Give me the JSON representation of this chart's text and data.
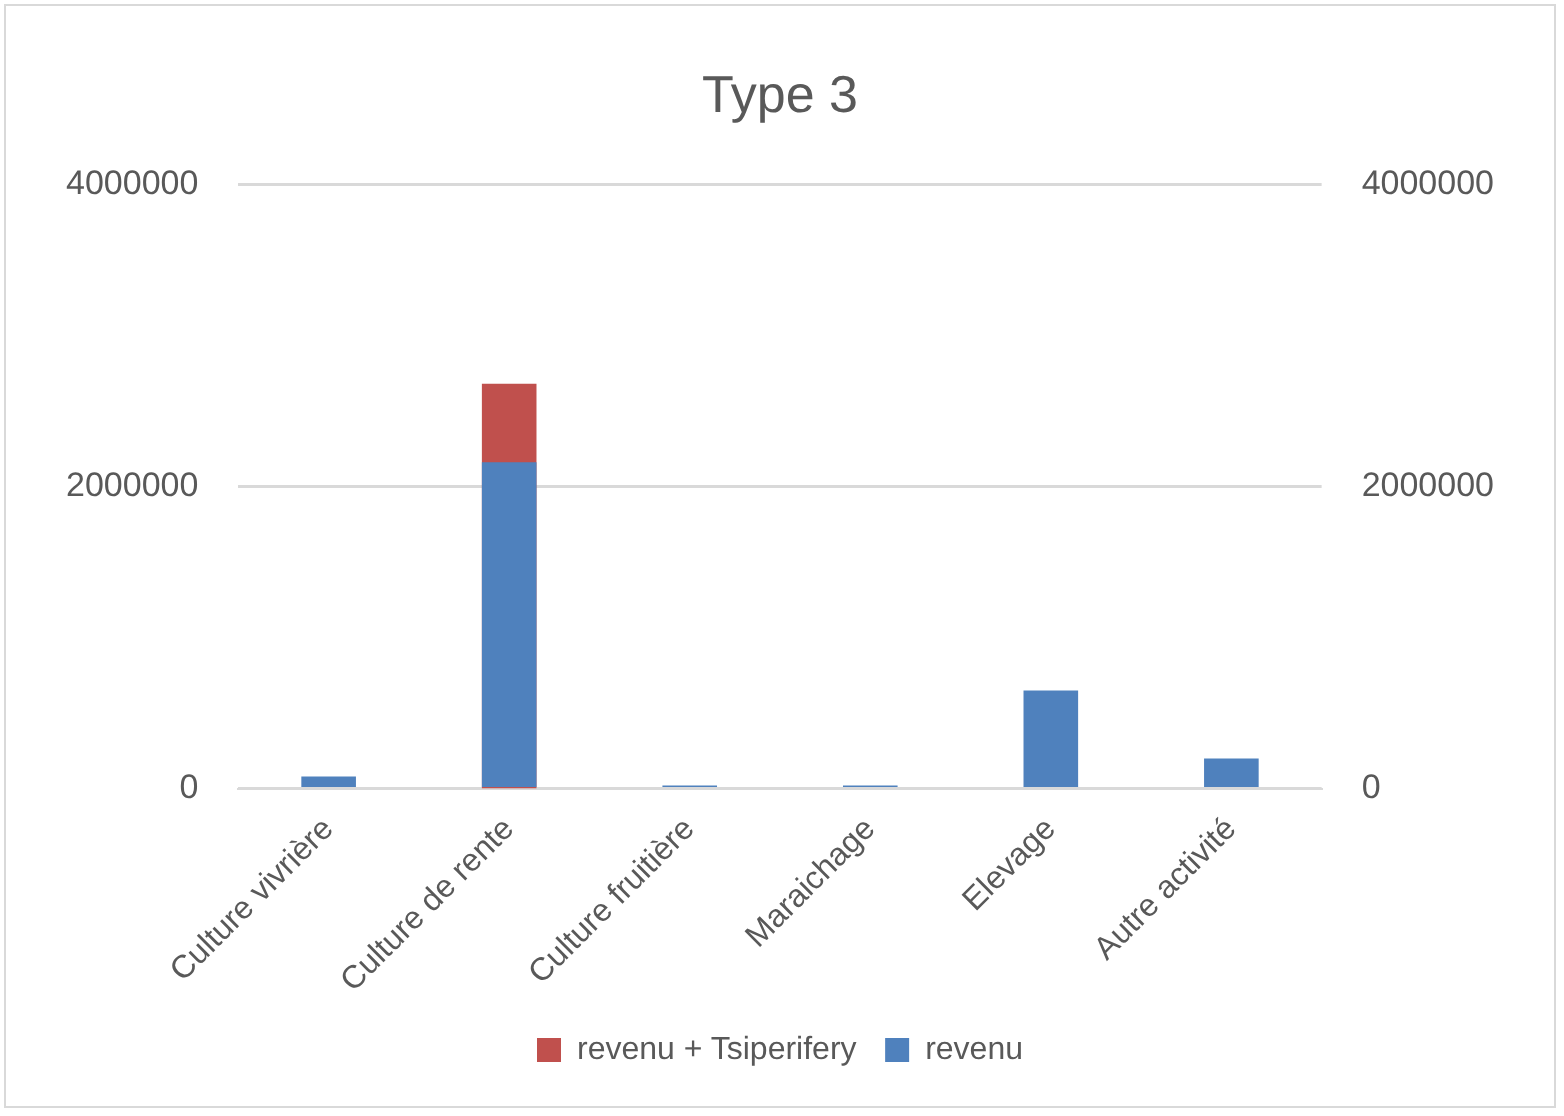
{
  "chart_data": {
    "type": "bar",
    "title": "Type 3",
    "categories": [
      "Culture vivrière",
      "Culture de rente",
      "Culture fruitière",
      "Maraichage",
      "Elevage",
      "Autre activité"
    ],
    "series": [
      {
        "name": "revenu + Tsiperifery",
        "color": "#c0504d",
        "axis": "y2",
        "values": [
          null,
          2680000,
          null,
          null,
          null,
          null
        ]
      },
      {
        "name": "revenu",
        "color": "#4f81bd",
        "values": [
          80000,
          2160000,
          20000,
          20000,
          650000,
          200000
        ]
      }
    ],
    "ylim": [
      0,
      4000000
    ],
    "yticks": [
      0,
      2000000,
      4000000
    ],
    "y2lim": [
      0,
      4000000
    ],
    "y2ticks": [
      0,
      2000000,
      4000000
    ],
    "grid": "y",
    "legend": "bottom"
  }
}
